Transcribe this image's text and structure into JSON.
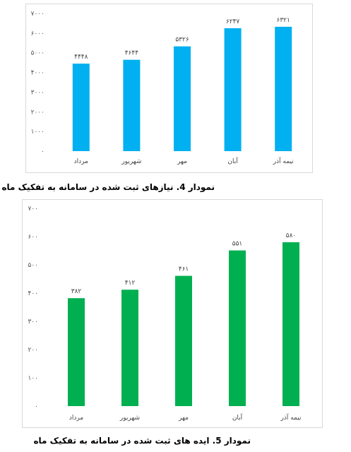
{
  "chart_data": [
    {
      "type": "bar",
      "title": "",
      "categories": [
        "مرداد",
        "شهریور",
        "مهر",
        "آبان",
        "نیمه آذر"
      ],
      "values": [
        4448,
        4644,
        5326,
        6247,
        6321
      ],
      "data_labels": [
        "۴۴۴۸",
        "۴۶۴۴",
        "۵۳۲۶",
        "۶۲۴۷",
        "۶۳۲۱"
      ],
      "ylim": [
        0,
        7000
      ],
      "yticks": [
        0,
        1000,
        2000,
        3000,
        4000,
        5000,
        6000,
        7000
      ],
      "ytick_labels": [
        "۰",
        "۱۰۰۰",
        "۲۰۰۰",
        "۳۰۰۰",
        "۴۰۰۰",
        "۵۰۰۰",
        "۶۰۰۰",
        "۷۰۰۰"
      ],
      "grid": false,
      "color": "#00b0f0",
      "caption": "نمودار 4. نیازهای ثبت شده در سامانه به تفکیک ماه"
    },
    {
      "type": "bar",
      "title": "",
      "categories": [
        "مرداد",
        "شهریور",
        "مهر",
        "آبان",
        "نیمه آذر"
      ],
      "values": [
        382,
        412,
        461,
        551,
        580
      ],
      "data_labels": [
        "۳۸۲",
        "۴۱۲",
        "۴۶۱",
        "۵۵۱",
        "۵۸۰"
      ],
      "ylim": [
        0,
        700
      ],
      "yticks": [
        0,
        100,
        200,
        300,
        400,
        500,
        600,
        700
      ],
      "ytick_labels": [
        "۰",
        "۱۰۰",
        "۲۰۰",
        "۳۰۰",
        "۴۰۰",
        "۵۰۰",
        "۶۰۰",
        "۷۰۰"
      ],
      "grid": false,
      "color": "#00b050",
      "caption": "نمودار 5. ایده های ثبت شده در سامانه به تفکیک ماه"
    }
  ]
}
